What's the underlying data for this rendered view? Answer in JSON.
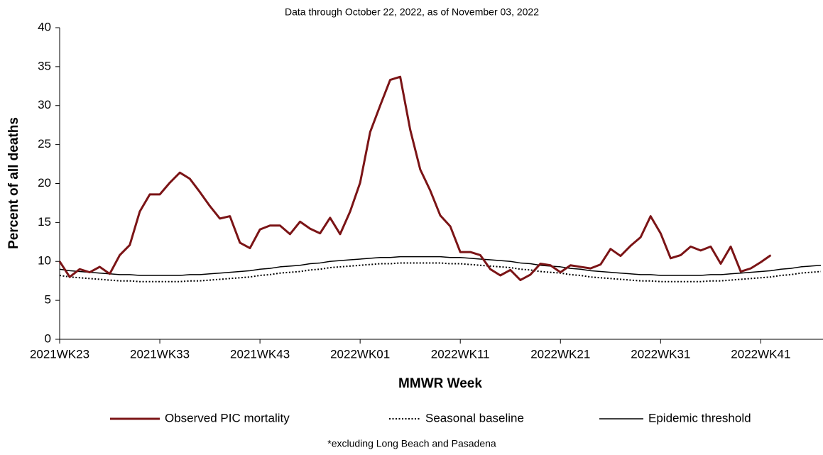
{
  "chart_data": {
    "type": "line",
    "subtitle": "Data through October 22, 2022, as of November 03, 2022",
    "x_label": "MMWR Week",
    "y_label": "Percent of all deaths",
    "footnote": "*excluding Long Beach and Pasadena",
    "categories": [
      "2021WK23",
      null,
      null,
      null,
      null,
      null,
      null,
      null,
      null,
      null,
      "2021WK33",
      null,
      null,
      null,
      null,
      null,
      null,
      null,
      null,
      null,
      "2021WK43",
      null,
      null,
      null,
      null,
      null,
      null,
      null,
      null,
      null,
      "2022WK01",
      null,
      null,
      null,
      null,
      null,
      null,
      null,
      null,
      null,
      "2022WK11",
      null,
      null,
      null,
      null,
      null,
      null,
      null,
      null,
      null,
      "2022WK21",
      null,
      null,
      null,
      null,
      null,
      null,
      null,
      null,
      null,
      "2022WK31",
      null,
      null,
      null,
      null,
      null,
      null,
      null,
      null,
      null,
      "2022WK41",
      null,
      null,
      null,
      null,
      null,
      null
    ],
    "ylim": [
      0,
      40
    ],
    "yticks": [
      0,
      5,
      10,
      15,
      20,
      25,
      30,
      35,
      40
    ],
    "grid": false,
    "legend": "bottom",
    "series": [
      {
        "name": "Observed PIC mortality",
        "color": "#7b1416",
        "line_style": "solid",
        "line_width": 3,
        "values": [
          10.0,
          8.0,
          9.0,
          8.6,
          9.3,
          8.4,
          10.8,
          12.1,
          16.4,
          18.6,
          18.6,
          20.1,
          21.4,
          20.6,
          18.9,
          17.1,
          15.5,
          15.8,
          12.4,
          11.7,
          14.1,
          14.6,
          14.6,
          13.5,
          15.1,
          14.2,
          13.6,
          15.6,
          13.5,
          16.4,
          20.1,
          26.6,
          30.0,
          33.3,
          33.7,
          26.9,
          21.8,
          19.1,
          15.9,
          14.5,
          11.2,
          11.2,
          10.8,
          9.0,
          8.2,
          8.9,
          7.6,
          8.3,
          9.7,
          9.5,
          8.6,
          9.5,
          9.3,
          9.1,
          9.6,
          11.6,
          10.7,
          12.0,
          13.1,
          15.8,
          13.6,
          10.4,
          10.8,
          11.9,
          11.4,
          11.9,
          9.7,
          11.9,
          8.7,
          9.1,
          9.9,
          10.8,
          null,
          null,
          null,
          null,
          null
        ]
      },
      {
        "name": "Seasonal baseline",
        "color": "#000000",
        "line_style": "dotted",
        "line_width": 2,
        "values": [
          8.2,
          8.0,
          7.9,
          7.8,
          7.7,
          7.6,
          7.5,
          7.5,
          7.4,
          7.4,
          7.4,
          7.4,
          7.4,
          7.5,
          7.5,
          7.6,
          7.7,
          7.8,
          7.9,
          8.0,
          8.2,
          8.3,
          8.5,
          8.6,
          8.7,
          8.9,
          9.0,
          9.2,
          9.3,
          9.4,
          9.5,
          9.6,
          9.7,
          9.7,
          9.8,
          9.8,
          9.8,
          9.8,
          9.8,
          9.7,
          9.7,
          9.6,
          9.5,
          9.4,
          9.3,
          9.2,
          9.0,
          8.9,
          8.7,
          8.6,
          8.5,
          8.3,
          8.2,
          8.0,
          7.9,
          7.8,
          7.7,
          7.6,
          7.5,
          7.5,
          7.4,
          7.4,
          7.4,
          7.4,
          7.4,
          7.5,
          7.5,
          7.6,
          7.7,
          7.8,
          7.9,
          8.0,
          8.2,
          8.3,
          8.5,
          8.6,
          8.7
        ]
      },
      {
        "name": "Epidemic threshold",
        "color": "#000000",
        "line_style": "solid",
        "line_width": 1.5,
        "values": [
          9.0,
          8.8,
          8.7,
          8.6,
          8.5,
          8.4,
          8.3,
          8.3,
          8.2,
          8.2,
          8.2,
          8.2,
          8.2,
          8.3,
          8.3,
          8.4,
          8.5,
          8.6,
          8.7,
          8.8,
          9.0,
          9.1,
          9.3,
          9.4,
          9.5,
          9.7,
          9.8,
          10.0,
          10.1,
          10.2,
          10.3,
          10.4,
          10.5,
          10.5,
          10.6,
          10.6,
          10.6,
          10.6,
          10.6,
          10.5,
          10.5,
          10.4,
          10.3,
          10.2,
          10.1,
          10.0,
          9.8,
          9.7,
          9.5,
          9.4,
          9.3,
          9.1,
          9.0,
          8.8,
          8.7,
          8.6,
          8.5,
          8.4,
          8.3,
          8.3,
          8.2,
          8.2,
          8.2,
          8.2,
          8.2,
          8.3,
          8.3,
          8.4,
          8.5,
          8.6,
          8.7,
          8.8,
          9.0,
          9.1,
          9.3,
          9.4,
          9.5
        ]
      }
    ]
  }
}
